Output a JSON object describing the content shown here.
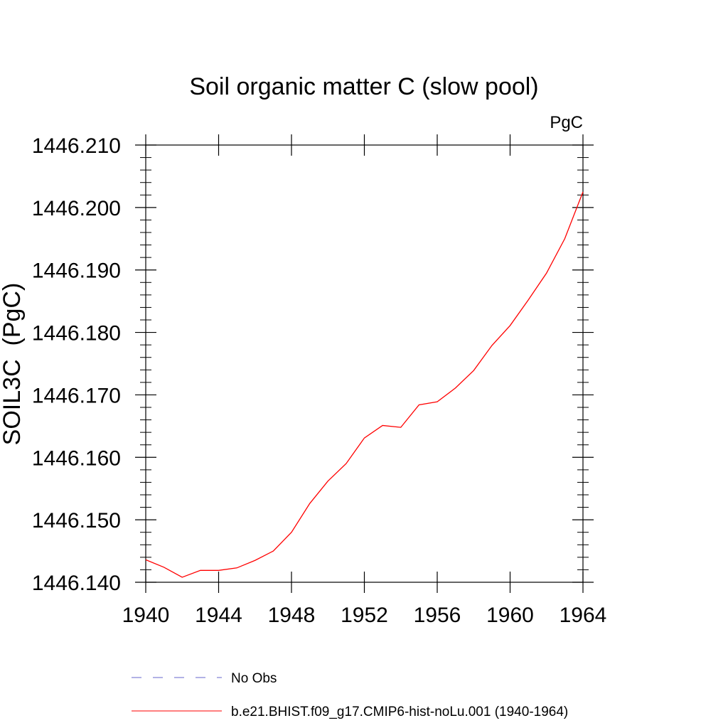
{
  "chart_data": {
    "type": "line",
    "title": "Soil organic matter C (slow pool)",
    "units": "PgC",
    "ylabel": "SOIL3C  (PgC)",
    "xlabel": "",
    "xlim": [
      1940,
      1964
    ],
    "ylim": [
      1446.14,
      1446.21
    ],
    "x_ticks": [
      1940,
      1944,
      1948,
      1952,
      1956,
      1960,
      1964
    ],
    "x_tick_labels": [
      "1940",
      "1944",
      "1948",
      "1952",
      "1956",
      "1960",
      "1964"
    ],
    "y_ticks": [
      1446.14,
      1446.15,
      1446.16,
      1446.17,
      1446.18,
      1446.19,
      1446.2,
      1446.21
    ],
    "y_tick_labels": [
      "1446.140",
      "1446.150",
      "1446.160",
      "1446.170",
      "1446.180",
      "1446.190",
      "1446.200",
      "1446.210"
    ],
    "grid": false,
    "legend_position": "bottom",
    "series": [
      {
        "name": "b.e21.BHIST.f09_g17.CMIP6-hist-noLu.001 (1940-1964)",
        "color": "#ff0000",
        "style": "solid",
        "x": [
          1940,
          1941,
          1942,
          1943,
          1944,
          1945,
          1946,
          1947,
          1948,
          1949,
          1950,
          1951,
          1952,
          1953,
          1954,
          1955,
          1956,
          1957,
          1958,
          1959,
          1960,
          1961,
          1962,
          1963,
          1964
        ],
        "y": [
          1446.1436,
          1446.1424,
          1446.1408,
          1446.1419,
          1446.1419,
          1446.1423,
          1446.1435,
          1446.145,
          1446.148,
          1446.1526,
          1446.1562,
          1446.159,
          1446.1631,
          1446.1651,
          1446.1648,
          1446.1684,
          1446.1689,
          1446.1711,
          1446.1739,
          1446.1779,
          1446.1811,
          1446.1852,
          1446.1895,
          1446.195,
          1446.2025
        ]
      }
    ],
    "legend": [
      {
        "label": "No Obs",
        "color": "#6666cc",
        "style": "dashed"
      },
      {
        "label": "b.e21.BHIST.f09_g17.CMIP6-hist-noLu.001 (1940-1964)",
        "color": "#ff0000",
        "style": "solid"
      }
    ]
  }
}
